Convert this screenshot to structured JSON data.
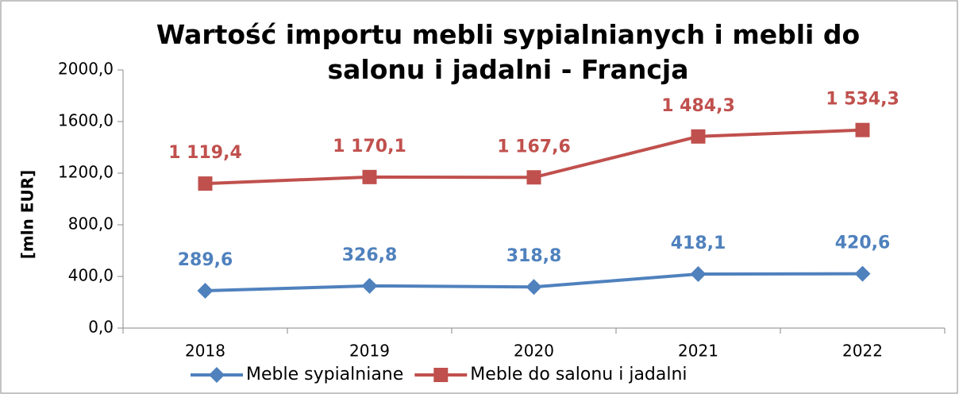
{
  "chart_data": {
    "type": "line",
    "title": "Wartość importu mebli sypialnianych i mebli do salonu i jadalni - Francja",
    "ylabel": "[mln EUR]",
    "categories": [
      "2018",
      "2019",
      "2020",
      "2021",
      "2022"
    ],
    "series": [
      {
        "name": "Meble sypialniane",
        "color": "#4f81bd",
        "marker": "diamond",
        "values": [
          289.6,
          326.8,
          318.8,
          418.1,
          420.6
        ],
        "value_labels": [
          "289,6",
          "326,8",
          "318,8",
          "418,1",
          "420,6"
        ]
      },
      {
        "name": "Meble do salonu i jadalni",
        "color": "#c0504d",
        "marker": "square",
        "values": [
          1119.4,
          1170.1,
          1167.6,
          1484.3,
          1534.3
        ],
        "value_labels": [
          "1 119,4",
          "1 170,1",
          "1 167,6",
          "1 484,3",
          "1 534,3"
        ]
      }
    ],
    "ylim": [
      0,
      2000
    ],
    "yticks": [
      {
        "value": 0,
        "label": "0,0"
      },
      {
        "value": 400,
        "label": "400,0"
      },
      {
        "value": 800,
        "label": "800,0"
      },
      {
        "value": 1200,
        "label": "1200,0"
      },
      {
        "value": 1600,
        "label": "1600,0"
      },
      {
        "value": 2000,
        "label": "2000,0"
      }
    ],
    "grid": false,
    "legend": "bottom"
  }
}
